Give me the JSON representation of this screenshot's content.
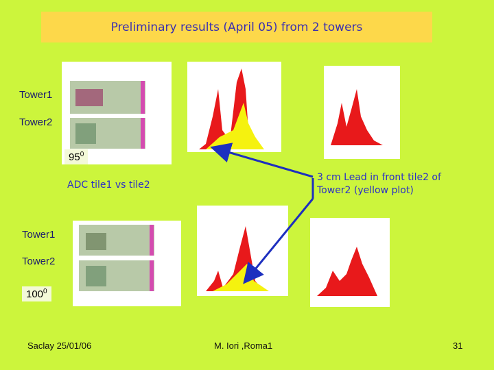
{
  "title": "Preliminary results (April 05) from 2 towers",
  "upper": {
    "tower1": "Tower1",
    "tower2": "Tower2",
    "angle": {
      "value": "95",
      "sup": "0"
    }
  },
  "captions": {
    "adc": "ADC tile1 vs tile2",
    "lead": "3 cm Lead in front tile2 of Tower2 (yellow plot)"
  },
  "lower": {
    "tower1": "Tower1",
    "tower2": "Tower2",
    "angle": {
      "value": "100",
      "sup": "0"
    }
  },
  "footer": {
    "left": "Saclay 25/01/06",
    "center": "M. Iori ,Roma1",
    "page": "31"
  }
}
